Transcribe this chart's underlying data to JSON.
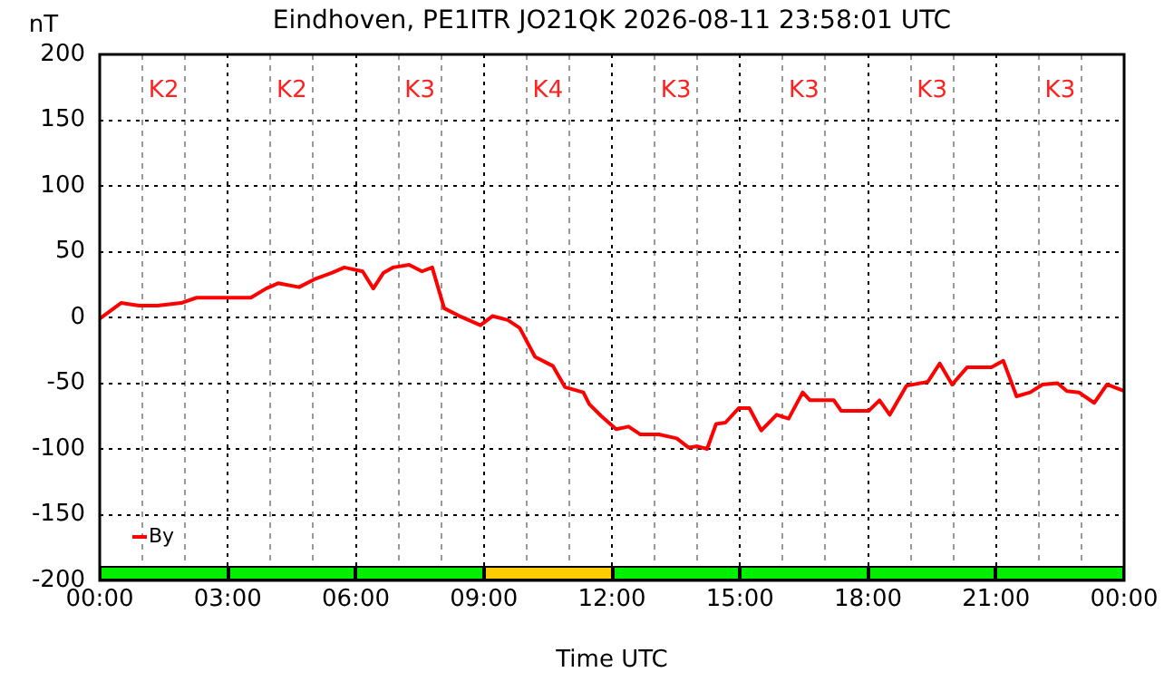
{
  "chart_data": {
    "type": "line",
    "title": "Eindhoven, PE1ITR JO21QK 2026-08-11 23:58:01 UTC",
    "xlabel": "Time UTC",
    "ylabel": "nT",
    "x": [
      0,
      0.5,
      0.92,
      1.35,
      1.91,
      2.27,
      3.54,
      3.9,
      4.18,
      4.67,
      5.03,
      5.45,
      5.73,
      6.16,
      6.41,
      6.65,
      6.87,
      7.25,
      7.55,
      7.79,
      8.07,
      8.43,
      8.92,
      9.2,
      9.56,
      9.84,
      10.2,
      10.62,
      10.9,
      11.33,
      11.47,
      11.75,
      12.1,
      12.39,
      12.67,
      13.1,
      13.52,
      13.8,
      14.0,
      14.23,
      14.44,
      14.66,
      14.97,
      15.22,
      15.5,
      15.86,
      16.14,
      16.47,
      16.64,
      17.2,
      17.37,
      18.02,
      18.27,
      18.51,
      18.9,
      19.4,
      19.68,
      19.97,
      20.32,
      20.67,
      20.89,
      21.17,
      21.48,
      21.8,
      22.09,
      22.44,
      22.66,
      22.94,
      23.3,
      23.6,
      24
    ],
    "series": [
      {
        "name": "By",
        "color": "#ff0000",
        "values": [
          -1,
          11,
          9,
          9,
          11,
          15,
          15,
          22,
          26,
          23,
          29,
          34,
          38,
          35,
          22,
          34,
          38,
          40,
          35,
          38,
          7,
          1,
          -6,
          1,
          -2,
          -8,
          -30,
          -37,
          -53,
          -57,
          -66,
          -75,
          -85,
          -83,
          -89,
          -89,
          -92,
          -99,
          -98,
          -100,
          -81,
          -80,
          -69,
          -69,
          -86,
          -74,
          -77,
          -57,
          -63,
          -63,
          -71,
          -71,
          -63,
          -74,
          -52,
          -49,
          -35,
          -51,
          -38,
          -38,
          -38,
          -33,
          -60,
          -57,
          -51,
          -50,
          -56,
          -57,
          -65,
          -51,
          -56
        ]
      }
    ],
    "xlim": [
      0,
      24
    ],
    "xticks": [
      {
        "value": 0,
        "label": "00:00"
      },
      {
        "value": 1,
        "label": null
      },
      {
        "value": 2,
        "label": null
      },
      {
        "value": 3,
        "label": "03:00"
      },
      {
        "value": 4,
        "label": null
      },
      {
        "value": 5,
        "label": null
      },
      {
        "value": 6,
        "label": "06:00"
      },
      {
        "value": 7,
        "label": null
      },
      {
        "value": 8,
        "label": null
      },
      {
        "value": 9,
        "label": "09:00"
      },
      {
        "value": 10,
        "label": null
      },
      {
        "value": 11,
        "label": null
      },
      {
        "value": 12,
        "label": "12:00"
      },
      {
        "value": 13,
        "label": null
      },
      {
        "value": 14,
        "label": null
      },
      {
        "value": 15,
        "label": "15:00"
      },
      {
        "value": 16,
        "label": null
      },
      {
        "value": 17,
        "label": null
      },
      {
        "value": 18,
        "label": "18:00"
      },
      {
        "value": 19,
        "label": null
      },
      {
        "value": 20,
        "label": null
      },
      {
        "value": 21,
        "label": "21:00"
      },
      {
        "value": 22,
        "label": null
      },
      {
        "value": 23,
        "label": null
      },
      {
        "value": 24,
        "label": "00:00"
      }
    ],
    "ylim": [
      -200,
      200
    ],
    "yticks": [
      -200,
      -150,
      -100,
      -50,
      0,
      50,
      100,
      150,
      200
    ],
    "grid": true,
    "legend": "bottom left",
    "marker": "none",
    "line_style": "solid",
    "annotations": [
      "K2",
      "K2",
      "K3",
      "K4",
      "K3",
      "K3",
      "K3",
      "K3"
    ]
  }
}
